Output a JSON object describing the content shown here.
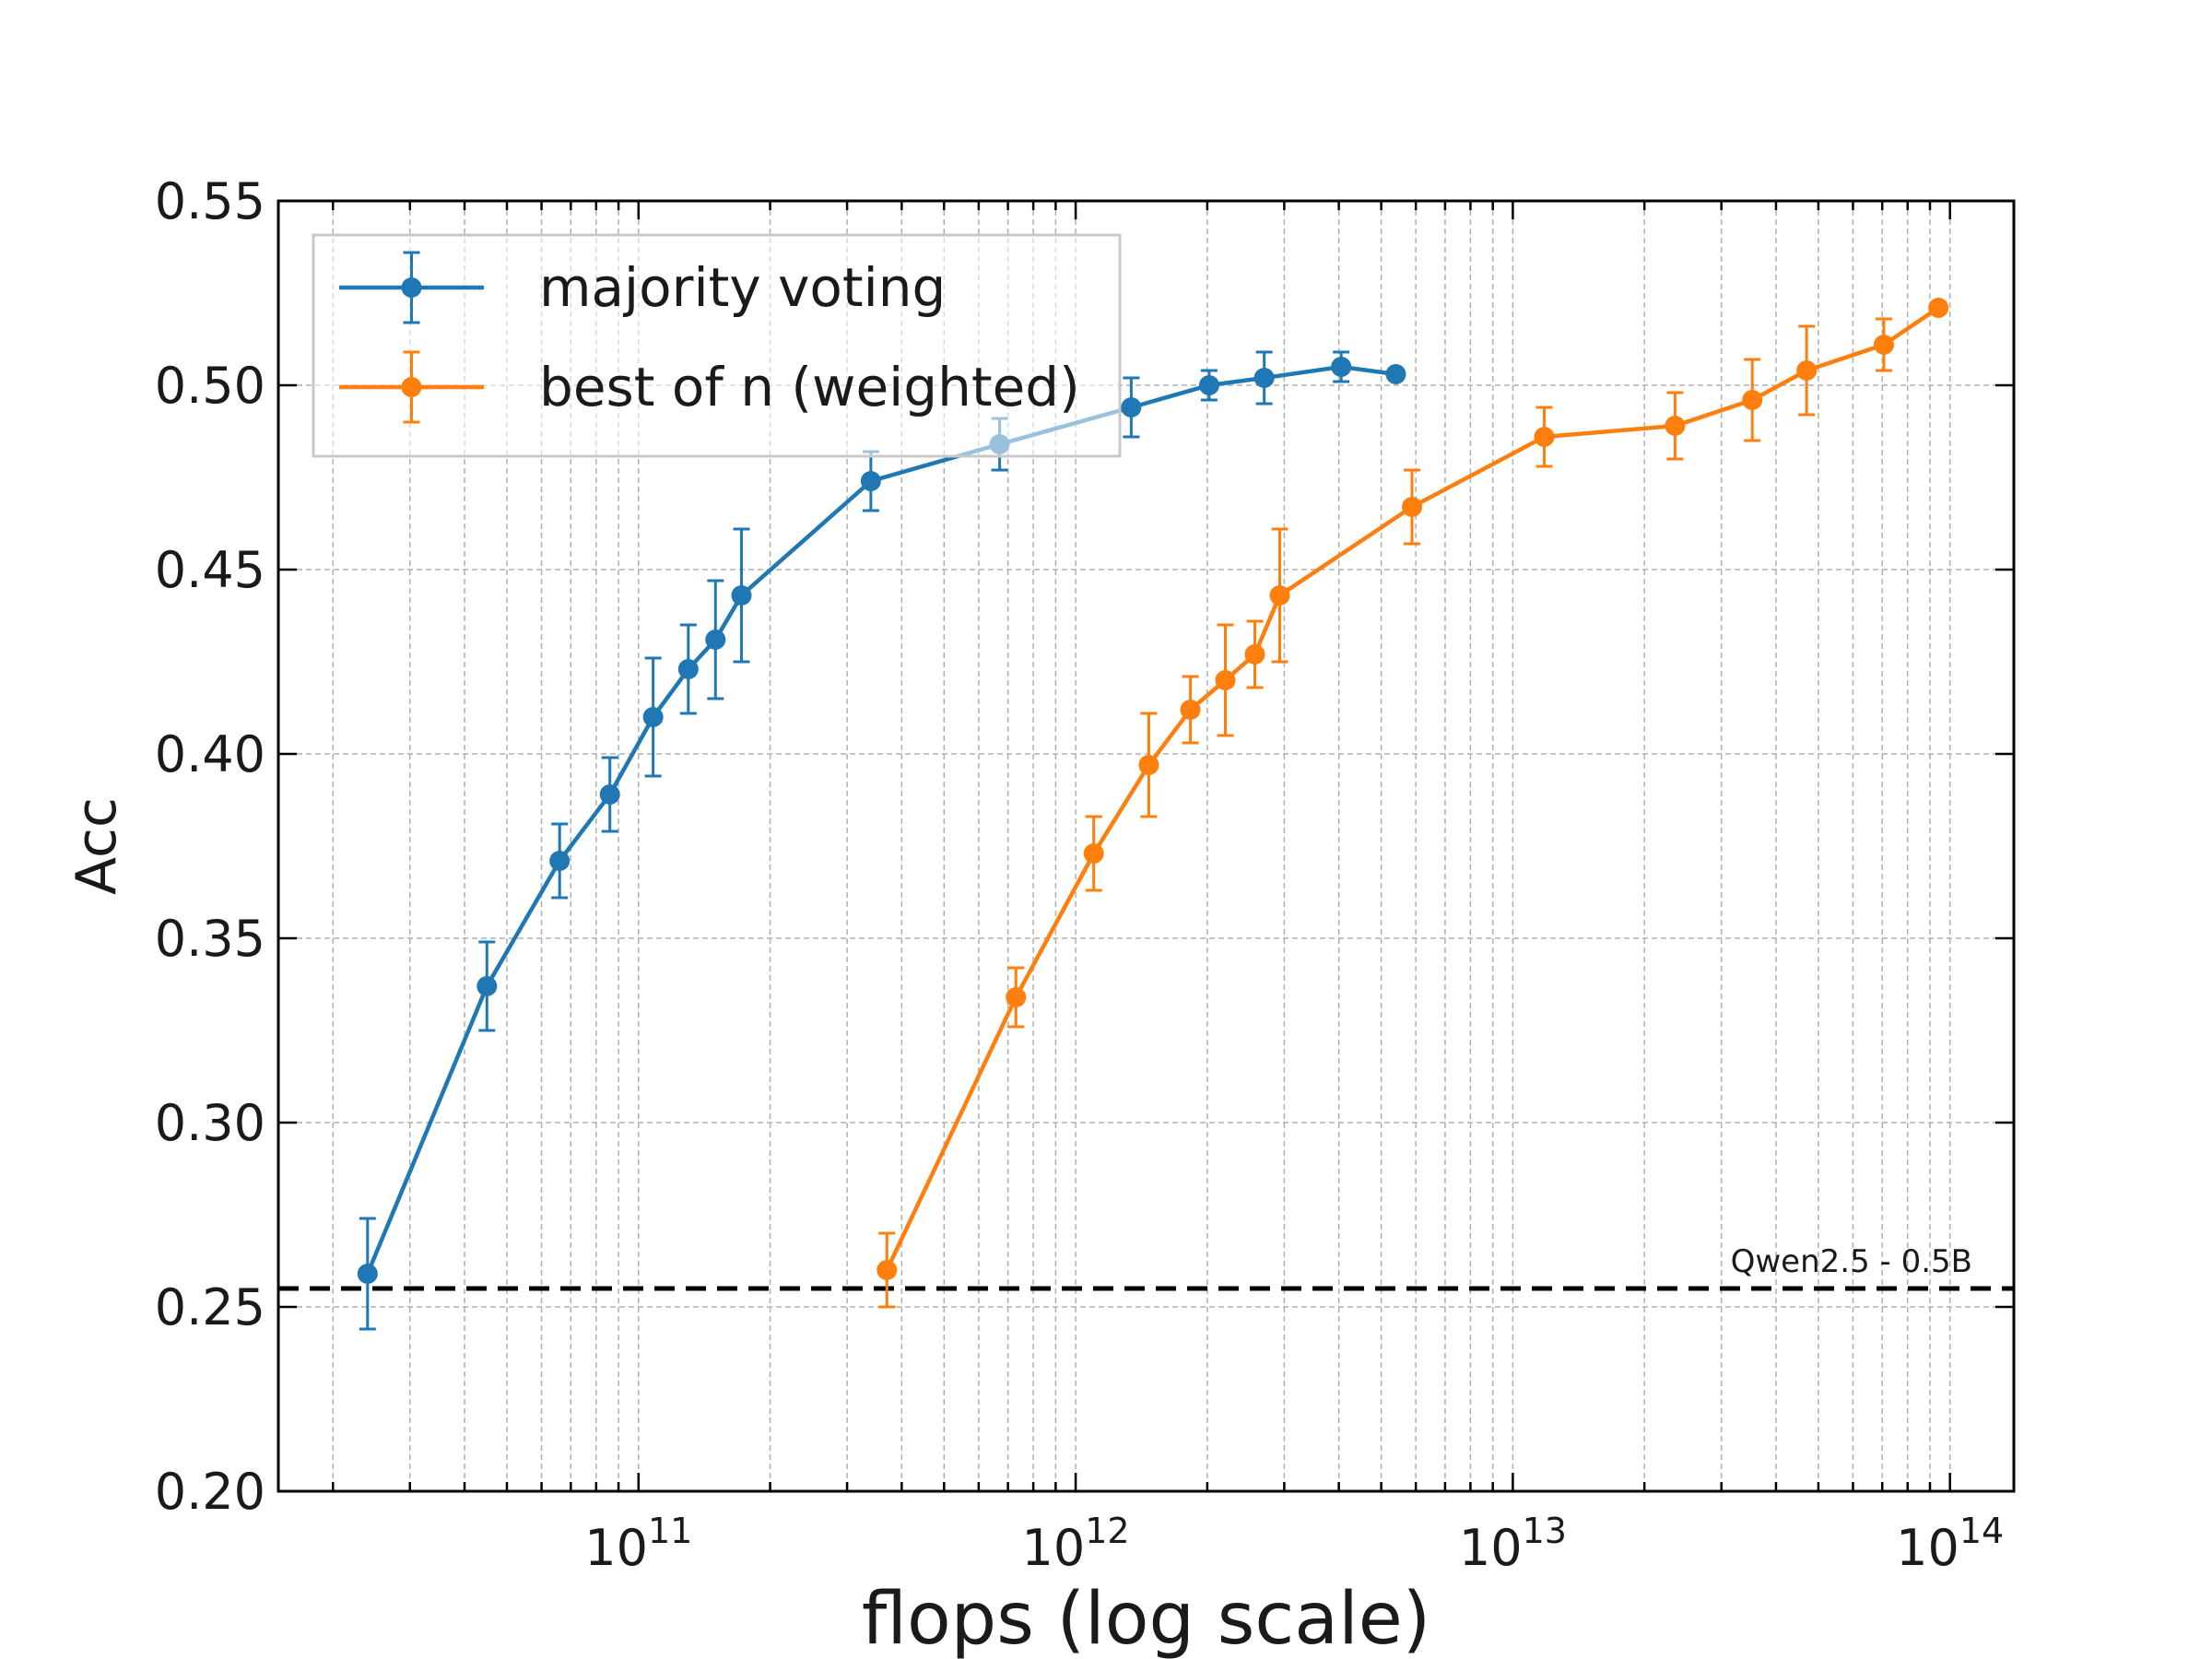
{
  "chart_data": {
    "type": "line",
    "xlabel": "flops (log scale)",
    "ylabel": "Acc",
    "xscale": "log",
    "xlim": [
      15000000000,
      140000000000000
    ],
    "ylim": [
      0.2,
      0.55
    ],
    "x_tick_labels": [
      {
        "value": 100000000000,
        "base": "10",
        "exp": "11"
      },
      {
        "value": 1000000000000,
        "base": "10",
        "exp": "12"
      },
      {
        "value": 10000000000000,
        "base": "10",
        "exp": "13"
      },
      {
        "value": 100000000000000,
        "base": "10",
        "exp": "14"
      }
    ],
    "y_ticks": [
      0.2,
      0.25,
      0.3,
      0.35,
      0.4,
      0.45,
      0.5,
      0.55
    ],
    "y_tick_labels": [
      "0.20",
      "0.25",
      "0.30",
      "0.35",
      "0.40",
      "0.45",
      "0.50",
      "0.55"
    ],
    "grid": true,
    "legend_position": "top-left",
    "series": [
      {
        "name": "majority voting",
        "color": "#1f77b4",
        "x": [
          24000000000,
          45000000000,
          66000000000,
          86000000000,
          108000000000,
          130000000000,
          150000000000,
          172000000000,
          340000000000,
          670000000000,
          1340000000000,
          2020000000000,
          2700000000000,
          4050000000000,
          5400000000000
        ],
        "y": [
          0.259,
          0.337,
          0.371,
          0.389,
          0.41,
          0.423,
          0.431,
          0.443,
          0.474,
          0.484,
          0.494,
          0.5,
          0.502,
          0.505,
          0.503
        ],
        "err": [
          0.015,
          0.012,
          0.01,
          0.01,
          0.016,
          0.012,
          0.016,
          0.018,
          0.008,
          0.007,
          0.008,
          0.004,
          0.007,
          0.004,
          0.0
        ]
      },
      {
        "name": "best of n (weighted)",
        "color": "#ff7f0e",
        "x": [
          370000000000,
          730000000000,
          1100000000000,
          1470000000000,
          1830000000000,
          2200000000000,
          2570000000000,
          2930000000000,
          5880000000000,
          11800000000000,
          23500000000000,
          35300000000000,
          47000000000000,
          70600000000000,
          94100000000000
        ],
        "y": [
          0.26,
          0.334,
          0.373,
          0.397,
          0.412,
          0.42,
          0.427,
          0.443,
          0.467,
          0.486,
          0.489,
          0.496,
          0.504,
          0.511,
          0.521
        ],
        "err": [
          0.01,
          0.008,
          0.01,
          0.014,
          0.009,
          0.015,
          0.009,
          0.018,
          0.01,
          0.008,
          0.009,
          0.011,
          0.012,
          0.007,
          0.0
        ]
      }
    ],
    "reference_line": {
      "label": "Qwen2.5 - 0.5B",
      "y": 0.255,
      "color": "#000000"
    }
  }
}
